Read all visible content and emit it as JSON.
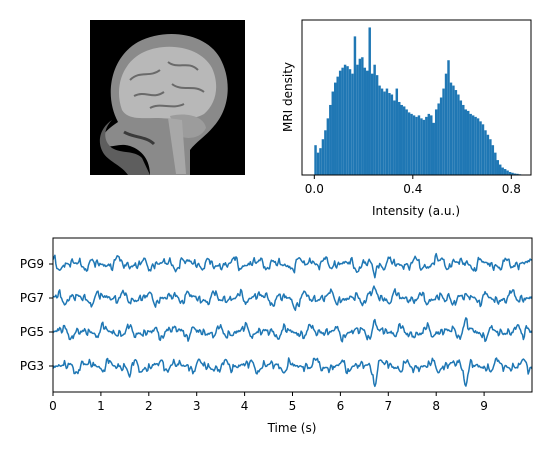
{
  "chart_data": [
    {
      "type": "image",
      "subject": "MRI sagittal head slice (grayscale)",
      "colors": {
        "background": "#000000",
        "tissue": "#bdbdbd"
      }
    },
    {
      "type": "histogram",
      "xlabel": "Intensity (a.u.)",
      "ylabel": "MRI density",
      "xlim": [
        -0.05,
        0.88
      ],
      "xticks": [
        0.0,
        0.4,
        0.8
      ],
      "xtick_labels": [
        "0.0",
        "0.4",
        "0.8"
      ],
      "yticks_visible": false,
      "color": "#1f77b4",
      "bin_width": 0.01,
      "bin_start": 0.0,
      "density": [
        0.2,
        0.15,
        0.18,
        0.24,
        0.3,
        0.38,
        0.47,
        0.56,
        0.62,
        0.66,
        0.7,
        0.72,
        0.74,
        0.73,
        0.71,
        0.68,
        0.93,
        0.74,
        0.78,
        0.79,
        0.72,
        0.7,
        0.99,
        0.68,
        0.74,
        0.67,
        0.6,
        0.58,
        0.56,
        0.58,
        0.55,
        0.54,
        0.5,
        0.58,
        0.49,
        0.47,
        0.46,
        0.44,
        0.42,
        0.41,
        0.4,
        0.39,
        0.4,
        0.38,
        0.37,
        0.39,
        0.41,
        0.4,
        0.35,
        0.44,
        0.48,
        0.52,
        0.58,
        0.68,
        0.77,
        0.62,
        0.6,
        0.57,
        0.54,
        0.5,
        0.47,
        0.44,
        0.43,
        0.41,
        0.4,
        0.39,
        0.38,
        0.36,
        0.34,
        0.3,
        0.27,
        0.24,
        0.2,
        0.15,
        0.1,
        0.07,
        0.05,
        0.04,
        0.03,
        0.02,
        0.015,
        0.01,
        0.008,
        0.005
      ]
    },
    {
      "type": "line",
      "xlabel": "Time (s)",
      "xlim": [
        0,
        10
      ],
      "xticks": [
        0,
        1,
        2,
        3,
        4,
        5,
        6,
        7,
        8,
        9
      ],
      "xtick_labels": [
        "0",
        "1",
        "2",
        "3",
        "4",
        "5",
        "6",
        "7",
        "8",
        "9"
      ],
      "channels": [
        "PG3",
        "PG5",
        "PG7",
        "PG9"
      ],
      "color": "#1f77b4",
      "sample_step": 0.02
    }
  ]
}
